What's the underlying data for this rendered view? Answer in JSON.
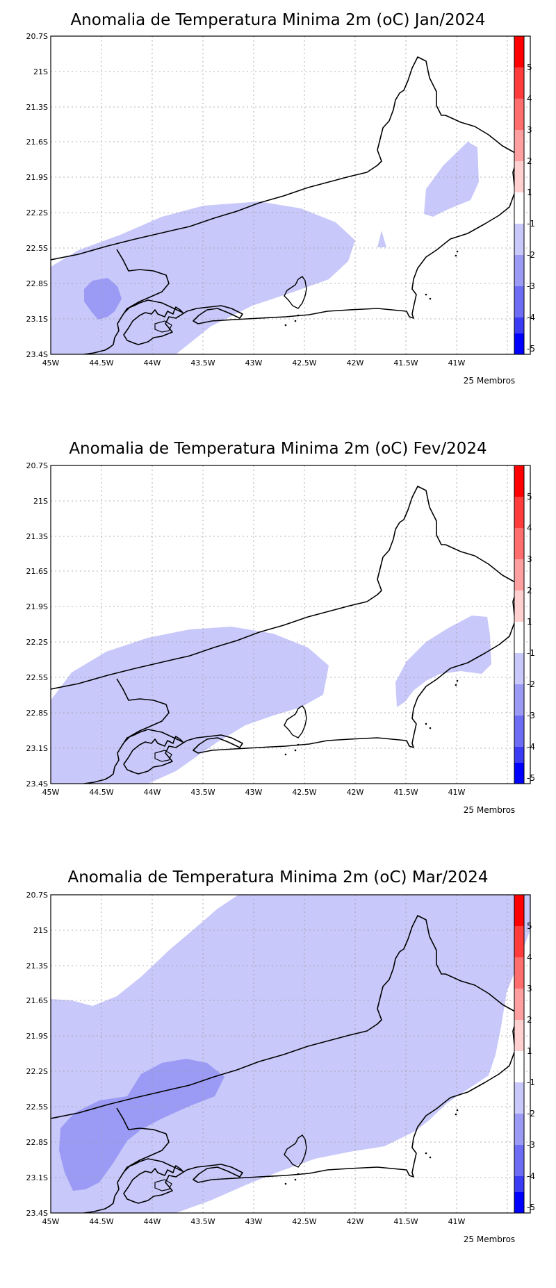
{
  "panels": [
    {
      "title": "Anomalia de Temperatura Minima 2m (oC) Jan/2024",
      "footer": "25 Membros"
    },
    {
      "title": "Anomalia de Temperatura Minima 2m (oC) Fev/2024",
      "footer": "25 Membros"
    },
    {
      "title": "Anomalia de Temperatura Minima 2m (oC) Mar/2024",
      "footer": "25 Membros"
    }
  ],
  "axes": {
    "lat_ticks": [
      "20.7S",
      "21S",
      "21.3S",
      "21.6S",
      "21.9S",
      "22.2S",
      "22.5S",
      "22.8S",
      "23.1S",
      "23.4S"
    ],
    "lon_ticks": [
      "45W",
      "44.5W",
      "44W",
      "43.5W",
      "43W",
      "42.5W",
      "42W",
      "41.5W",
      "41W"
    ]
  },
  "colorbar": {
    "labels": [
      "5",
      "4",
      "3",
      "2",
      "1",
      "-1",
      "-2",
      "-3",
      "-4",
      "-5"
    ],
    "colors": [
      "#ff0000",
      "#ff3b3b",
      "#ff6e6e",
      "#ff9f9f",
      "#ffd0d0",
      "#ffffff",
      "#c8c8fa",
      "#9b9bf6",
      "#6c6cf4",
      "#3b3bf4",
      "#0000ff"
    ]
  },
  "anomaly_colors": {
    "minus1_to_minus2": "#c8c8fa",
    "minus2_to_minus3": "#9b9bf6"
  }
}
